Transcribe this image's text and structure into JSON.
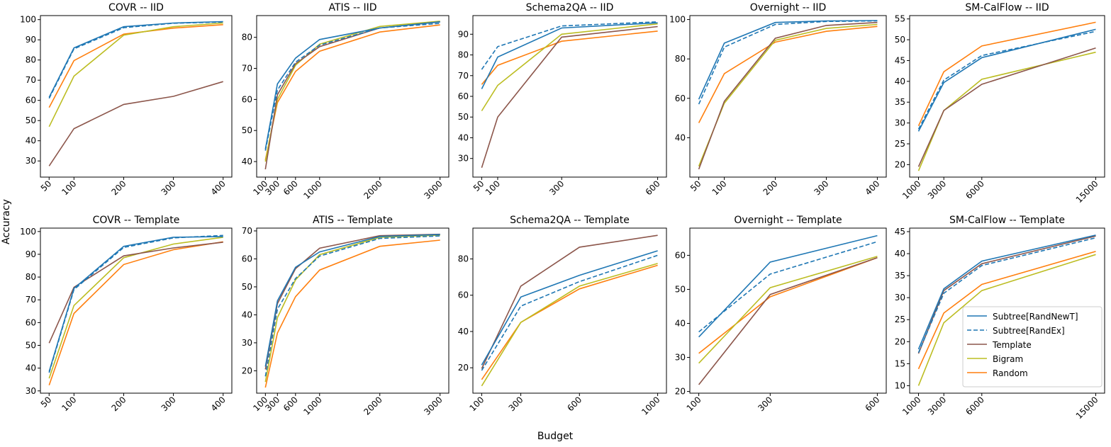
{
  "figure": {
    "xlabel": "Budget",
    "ylabel": "Accuracy"
  },
  "legend": {
    "placement": "lower-right of SM-CalFlow -- Template panel",
    "entries": [
      {
        "label": "Subtree[RandNewT]",
        "color": "#1f77b4",
        "dash": false
      },
      {
        "label": "Subtree[RandEx]",
        "color": "#1f77b4",
        "dash": true
      },
      {
        "label": "Template",
        "color": "#8c564b",
        "dash": false
      },
      {
        "label": "Bigram",
        "color": "#bcbd22",
        "dash": false
      },
      {
        "label": "Random",
        "color": "#ff7f0e",
        "dash": false
      }
    ]
  },
  "chart_data": [
    {
      "type": "line",
      "title": "COVR -- IID",
      "x": [
        50,
        100,
        200,
        300,
        400
      ],
      "xticks": [
        "50",
        "100",
        "200",
        "300",
        "400"
      ],
      "yticks": [
        30,
        40,
        50,
        60,
        70,
        80,
        90,
        100
      ],
      "ylim": [
        22,
        102
      ],
      "series": [
        {
          "name": "Subtree[RandNewT]",
          "values": [
            61.5,
            86,
            96.5,
            98.3,
            99
          ]
        },
        {
          "name": "Subtree[RandEx]",
          "values": [
            61,
            85.5,
            96,
            98.2,
            98.8
          ]
        },
        {
          "name": "Template",
          "values": [
            27.5,
            46,
            58,
            62,
            69.3
          ]
        },
        {
          "name": "Bigram",
          "values": [
            47,
            72,
            92.3,
            96.5,
            98.3
          ]
        },
        {
          "name": "Random",
          "values": [
            56.5,
            79.7,
            92.8,
            95.8,
            97.5
          ]
        }
      ]
    },
    {
      "type": "line",
      "title": "ATIS -- IID",
      "x": [
        100,
        300,
        600,
        1000,
        2000,
        3000
      ],
      "xticks": [
        "100",
        "300",
        "600",
        "1000",
        "2000",
        "3000"
      ],
      "yticks": [
        40,
        50,
        60,
        70,
        80
      ],
      "ylim": [
        35,
        87
      ],
      "series": [
        {
          "name": "Subtree[RandNewT]",
          "values": [
            44,
            65,
            73.3,
            79.3,
            83,
            85
          ]
        },
        {
          "name": "Subtree[RandEx]",
          "values": [
            43.5,
            63,
            72,
            77.5,
            83,
            84.5
          ]
        },
        {
          "name": "Template",
          "values": [
            37.5,
            61.5,
            71.5,
            77,
            83,
            85
          ]
        },
        {
          "name": "Bigram",
          "values": [
            40,
            60,
            71,
            77.8,
            83.5,
            85.2
          ]
        },
        {
          "name": "Random",
          "values": [
            40.5,
            59,
            69,
            75.5,
            81.7,
            84
          ]
        }
      ]
    },
    {
      "type": "line",
      "title": "Schema2QA -- IID",
      "x": [
        50,
        100,
        300,
        600
      ],
      "xticks": [
        "50",
        "100",
        "300",
        "600"
      ],
      "yticks": [
        30,
        40,
        50,
        60,
        70,
        80,
        90
      ],
      "ylim": [
        21,
        99
      ],
      "series": [
        {
          "name": "Subtree[RandNewT]",
          "values": [
            63.6,
            79,
            93,
            95.5
          ]
        },
        {
          "name": "Subtree[RandEx]",
          "values": [
            73,
            84,
            94,
            96
          ]
        },
        {
          "name": "Template",
          "values": [
            25.5,
            50,
            88.6,
            93.7
          ]
        },
        {
          "name": "Bigram",
          "values": [
            53,
            65.3,
            90,
            95
          ]
        },
        {
          "name": "Random",
          "values": [
            65.7,
            75,
            86.6,
            91.5
          ]
        }
      ]
    },
    {
      "type": "line",
      "title": "Overnight -- IID",
      "x": [
        50,
        100,
        200,
        300,
        400
      ],
      "xticks": [
        "50",
        "100",
        "200",
        "300",
        "400"
      ],
      "yticks": [
        40,
        60,
        80,
        100
      ],
      "ylim": [
        20,
        102
      ],
      "series": [
        {
          "name": "Subtree[RandNewT]",
          "values": [
            59.5,
            88,
            98.5,
            99.3,
            99.5
          ]
        },
        {
          "name": "Subtree[RandEx]",
          "values": [
            57,
            86,
            97.5,
            99,
            99.3
          ]
        },
        {
          "name": "Template",
          "values": [
            24,
            58.5,
            90.5,
            97,
            98.5
          ]
        },
        {
          "name": "Bigram",
          "values": [
            25.5,
            57.5,
            89.5,
            95.5,
            97.5
          ]
        },
        {
          "name": "Random",
          "values": [
            47.5,
            72.5,
            88.5,
            94,
            96.5
          ]
        }
      ]
    },
    {
      "type": "line",
      "title": "SM-CalFlow -- IID",
      "x": [
        1000,
        3000,
        6000,
        15000
      ],
      "xticks": [
        "1000",
        "3000",
        "6000",
        "15000"
      ],
      "yticks": [
        20,
        25,
        30,
        35,
        40,
        45,
        50,
        55
      ],
      "ylim": [
        17,
        55.8
      ],
      "series": [
        {
          "name": "Subtree[RandNewT]",
          "values": [
            28,
            39.7,
            45.7,
            52.5
          ]
        },
        {
          "name": "Subtree[RandEx]",
          "values": [
            28.5,
            40.3,
            46.2,
            52
          ]
        },
        {
          "name": "Template",
          "values": [
            19.5,
            33,
            39.3,
            48
          ]
        },
        {
          "name": "Bigram",
          "values": [
            18.5,
            33,
            40.5,
            47
          ]
        },
        {
          "name": "Random",
          "values": [
            29.3,
            42.3,
            48.5,
            54.2
          ]
        }
      ]
    },
    {
      "type": "line",
      "title": "COVR -- Template",
      "x": [
        50,
        100,
        200,
        300,
        400
      ],
      "xticks": [
        "50",
        "100",
        "200",
        "300",
        "400"
      ],
      "yticks": [
        30,
        40,
        50,
        60,
        70,
        80,
        90,
        100
      ],
      "ylim": [
        29,
        101.5
      ],
      "series": [
        {
          "name": "Subtree[RandNewT]",
          "values": [
            38.5,
            75,
            93.5,
            97.5,
            97.8
          ]
        },
        {
          "name": "Subtree[RandEx]",
          "values": [
            38,
            74.5,
            93,
            97.2,
            98.3
          ]
        },
        {
          "name": "Template",
          "values": [
            51,
            75.5,
            89.3,
            92.8,
            95.3
          ]
        },
        {
          "name": "Bigram",
          "values": [
            35.5,
            67.5,
            88.5,
            94.5,
            97.5
          ]
        },
        {
          "name": "Random",
          "values": [
            32.5,
            64,
            85.5,
            92,
            95.5
          ]
        }
      ]
    },
    {
      "type": "line",
      "title": "ATIS -- Template",
      "x": [
        100,
        300,
        600,
        1000,
        2000,
        3000
      ],
      "xticks": [
        "100",
        "300",
        "600",
        "1000",
        "2000",
        "3000"
      ],
      "yticks": [
        20,
        30,
        40,
        50,
        60,
        70
      ],
      "ylim": [
        12,
        71
      ],
      "series": [
        {
          "name": "Subtree[RandNewT]",
          "values": [
            21.5,
            45,
            57,
            62.5,
            68,
            68.7
          ]
        },
        {
          "name": "Subtree[RandEx]",
          "values": [
            18,
            42,
            53,
            61,
            67.3,
            68.2
          ]
        },
        {
          "name": "Template",
          "values": [
            20.5,
            44,
            56.5,
            63.8,
            68.3,
            68.8
          ]
        },
        {
          "name": "Bigram",
          "values": [
            16,
            39,
            52.5,
            61.5,
            67.7,
            68.5
          ]
        },
        {
          "name": "Random",
          "values": [
            14,
            33.5,
            46.5,
            56,
            64.5,
            66.7
          ]
        }
      ]
    },
    {
      "type": "line",
      "title": "Schema2QA -- Template",
      "x": [
        100,
        300,
        600,
        1000
      ],
      "xticks": [
        "100",
        "300",
        "600",
        "1000"
      ],
      "yticks": [
        20,
        40,
        60,
        80
      ],
      "ylim": [
        6,
        97
      ],
      "series": [
        {
          "name": "Subtree[RandNewT]",
          "values": [
            21.5,
            59,
            71,
            84.5
          ]
        },
        {
          "name": "Subtree[RandEx]",
          "values": [
            18.5,
            54,
            67.5,
            82
          ]
        },
        {
          "name": "Template",
          "values": [
            19.5,
            65,
            86.5,
            93
          ]
        },
        {
          "name": "Bigram",
          "values": [
            10,
            45,
            65,
            77.5
          ]
        },
        {
          "name": "Random",
          "values": [
            13.5,
            45,
            63.5,
            76.5
          ]
        }
      ]
    },
    {
      "type": "line",
      "title": "Overnight -- Template",
      "x": [
        100,
        300,
        600
      ],
      "xticks": [
        "100",
        "300",
        "600"
      ],
      "yticks": [
        20,
        30,
        40,
        50,
        60
      ],
      "ylim": [
        19.5,
        68
      ],
      "series": [
        {
          "name": "Subtree[RandNewT]",
          "values": [
            36,
            58,
            65.8
          ]
        },
        {
          "name": "Subtree[RandEx]",
          "values": [
            37.5,
            54.5,
            64
          ]
        },
        {
          "name": "Template",
          "values": [
            22,
            48.5,
            59.3
          ]
        },
        {
          "name": "Bigram",
          "values": [
            28.3,
            50.5,
            59.7
          ]
        },
        {
          "name": "Random",
          "values": [
            31.2,
            47.8,
            59.3
          ]
        }
      ]
    },
    {
      "type": "line",
      "title": "SM-CalFlow -- Template",
      "x": [
        1000,
        3000,
        6000,
        15000
      ],
      "xticks": [
        "1000",
        "3000",
        "6000",
        "15000"
      ],
      "yticks": [
        10,
        15,
        20,
        25,
        30,
        35,
        40,
        45
      ],
      "ylim": [
        8.3,
        45.8
      ],
      "series": [
        {
          "name": "Subtree[RandNewT]",
          "values": [
            18.3,
            32,
            38.3,
            44.2
          ]
        },
        {
          "name": "Subtree[RandEx]",
          "values": [
            17.5,
            31,
            37.3,
            43.6
          ]
        },
        {
          "name": "Template",
          "values": [
            17.3,
            31.6,
            37.7,
            44
          ]
        },
        {
          "name": "Bigram",
          "values": [
            10,
            24.3,
            31.6,
            39.8
          ]
        },
        {
          "name": "Random",
          "values": [
            13.8,
            26.5,
            33,
            40.5
          ]
        }
      ]
    }
  ]
}
